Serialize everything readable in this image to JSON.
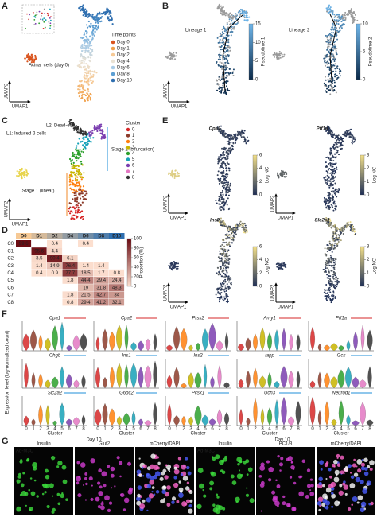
{
  "panels": {
    "a": "A",
    "b": "B",
    "c": "C",
    "d": "D",
    "e": "E",
    "f": "F",
    "g": "G"
  },
  "a": {
    "annotation": "Acinar cells (day 0)",
    "legend_title": "Time points",
    "legend": [
      {
        "name": "Day 0",
        "color": "#d9541e"
      },
      {
        "name": "Day 1",
        "color": "#f0a04b"
      },
      {
        "name": "Day 2",
        "color": "#f6c995"
      },
      {
        "name": "Day 4",
        "color": "#e9e2d4"
      },
      {
        "name": "Day 6",
        "color": "#a9cbe6"
      },
      {
        "name": "Day 8",
        "color": "#5c9fd3"
      },
      {
        "name": "Day 10",
        "color": "#2f6fb0"
      }
    ],
    "x_label": "UMAP1",
    "y_label": "UMAP2"
  },
  "b": {
    "lineages": [
      "Lineage 1",
      "Lineage 2"
    ],
    "colorbars": [
      {
        "title": "Pseudotime 1",
        "ticks": [
          0,
          5,
          10,
          15
        ]
      },
      {
        "title": "Pseudotime 2",
        "ticks": [
          0,
          5,
          10
        ]
      }
    ],
    "x_label": "UMAP1",
    "y_label": "UMAP2"
  },
  "c": {
    "l2": "L2: Dead-end",
    "l1": "L1: Induced β cells",
    "stage2": "Stage 2 (bifurcation)",
    "stage1": "Stage 1 (linear)",
    "legend_title": "Cluster",
    "clusters": [
      {
        "name": "0",
        "color": "#d62728"
      },
      {
        "name": "1",
        "color": "#8c3b2a"
      },
      {
        "name": "2",
        "color": "#ff7f0e"
      },
      {
        "name": "3",
        "color": "#c8b400"
      },
      {
        "name": "4",
        "color": "#2ca02c"
      },
      {
        "name": "5",
        "color": "#17a2b8"
      },
      {
        "name": "6",
        "color": "#7b3fb0"
      },
      {
        "name": "7",
        "color": "#e377c2"
      },
      {
        "name": "8",
        "color": "#333333"
      }
    ],
    "x_label": "UMAP1",
    "y_label": "UMAP2"
  },
  "d": {
    "columns": [
      "D0",
      "D1",
      "D2",
      "D4",
      "D6",
      "D8",
      "D10"
    ],
    "rows": [
      "C0",
      "C1",
      "C2",
      "C3",
      "C4",
      "C5",
      "C6",
      "C7",
      "C8"
    ],
    "cells": [
      [
        99.6,
        null,
        0.4,
        null,
        0.4,
        null,
        null
      ],
      [
        null,
        95.6,
        4.4,
        null,
        null,
        null,
        null
      ],
      [
        null,
        3.5,
        90.4,
        6.1,
        null,
        null,
        null
      ],
      [
        null,
        1.4,
        14.9,
        76.4,
        1.4,
        1.4,
        null
      ],
      [
        null,
        0.4,
        0.9,
        77.7,
        18.5,
        1.7,
        0.8
      ],
      [
        null,
        null,
        null,
        1.8,
        44.4,
        29.4,
        24.4
      ],
      [
        null,
        null,
        null,
        null,
        19.0,
        31.8,
        48.3
      ],
      [
        null,
        null,
        null,
        1.8,
        21.5,
        42.7,
        34.0
      ],
      [
        null,
        null,
        null,
        0.8,
        29.4,
        41.2,
        32.1
      ]
    ],
    "colorbar_title": "Proportion (%)",
    "colorbar_ticks": [
      0,
      20,
      40,
      60,
      80,
      100
    ]
  },
  "e": {
    "genes": [
      {
        "name": "Cpa1",
        "ticks": [
          0,
          2,
          4,
          6
        ]
      },
      {
        "name": "Ptf1a",
        "ticks": [
          0,
          1,
          2,
          3
        ]
      },
      {
        "name": "Ins2",
        "ticks": [
          0,
          2,
          4,
          6
        ]
      },
      {
        "name": "Slc2a2",
        "ticks": [
          0,
          1,
          2,
          3
        ]
      }
    ],
    "colorbar_title": "Log NC",
    "x_label": "UMAP1",
    "y_label": "UMAP2"
  },
  "f": {
    "genes": [
      [
        "Cpa1",
        "Cpa2",
        "Prss2",
        "Amy1",
        "Ptf1a"
      ],
      [
        "Chgb",
        "Ins1",
        "Ins2",
        "Iapp",
        "Gck"
      ],
      [
        "Slc2a2",
        "G6pc2",
        "Pcsk1",
        "Ucn3",
        "Neurod1"
      ]
    ],
    "clusters": [
      "0",
      "1",
      "2",
      "3",
      "4",
      "5",
      "6",
      "7",
      "8"
    ],
    "x_label": "Cluster",
    "y_label": "Expression level (log-normalized count)"
  },
  "g": {
    "title": "Day 10",
    "sample": "Ad-M3C",
    "left": [
      "Insulin",
      "Glut2",
      "mCherry/DAPI"
    ],
    "right": [
      "Insulin",
      "PC1/3",
      "mCherry/DAPI"
    ]
  }
}
